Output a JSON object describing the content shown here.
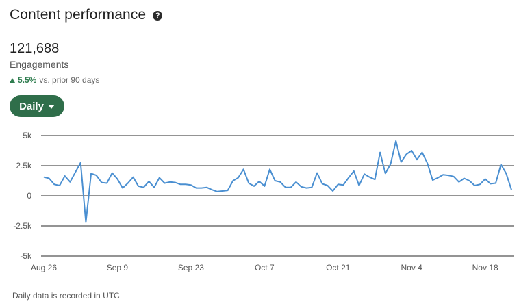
{
  "header": {
    "title": "Content performance",
    "help_icon": "question-circle-icon"
  },
  "metric": {
    "value": "121,688",
    "label": "Engagements",
    "change_pct": "5.5%",
    "change_text": "vs. prior 90 days",
    "change_direction": "up",
    "change_color": "#2f7d4f"
  },
  "period_button": {
    "label": "Daily",
    "icon": "caret-down-icon",
    "color": "#2f6e4a"
  },
  "footnote": "Daily data is recorded in UTC",
  "chart_data": {
    "type": "line",
    "title": "",
    "xlabel": "",
    "ylabel": "",
    "ylim": [
      -5000,
      5000
    ],
    "y_ticks": [
      5000,
      2500,
      0,
      -2500,
      -5000
    ],
    "y_tick_labels": [
      "5k",
      "2.5k",
      "0",
      "-2.5k",
      "-5k"
    ],
    "x_tick_labels": [
      "Aug 26",
      "Sep 9",
      "Sep 23",
      "Oct 7",
      "Oct 21",
      "Nov 4",
      "Nov 18"
    ],
    "grid": "horizontal",
    "line_color": "#4a8fd1",
    "series": [
      {
        "values": [
          1550,
          1450,
          950,
          850,
          1650,
          1150,
          1950,
          2750,
          -2200,
          1850,
          1700,
          1100,
          1050,
          1900,
          1400,
          650,
          1050,
          1550,
          800,
          700,
          1200,
          700,
          1500,
          1050,
          1150,
          1100,
          950,
          950,
          900,
          650,
          650,
          700,
          500,
          350,
          400,
          450,
          1250,
          1500,
          2200,
          1050,
          800,
          1200,
          800,
          2200,
          1250,
          1150,
          700,
          700,
          1150,
          750,
          650,
          700,
          1900,
          1000,
          850,
          400,
          950,
          900,
          1500,
          2050,
          850,
          1800,
          1550,
          1350,
          3600,
          1850,
          2650,
          4550,
          2800,
          3450,
          3750,
          3000,
          3600,
          2700,
          1300,
          1500,
          1750,
          1700,
          1600,
          1150,
          1450,
          1250,
          850,
          950,
          1400,
          1000,
          1050,
          2600,
          1850,
          500
        ]
      }
    ]
  }
}
